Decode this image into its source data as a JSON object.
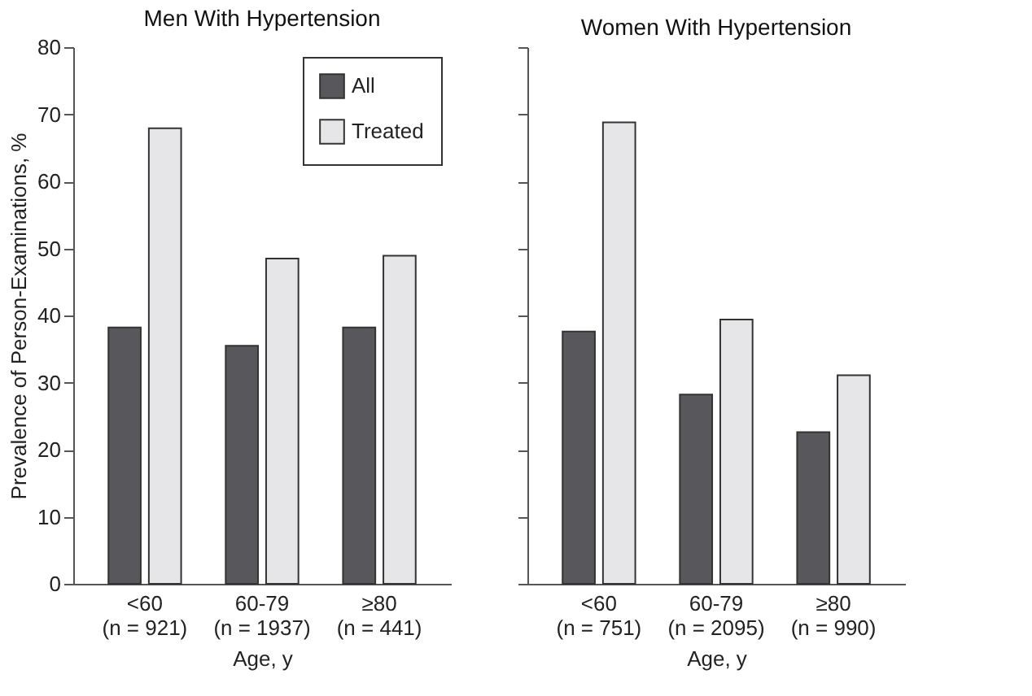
{
  "chart_data": [
    {
      "type": "bar",
      "title": "Men With Hypertension",
      "xlabel": "Age, y",
      "ylabel": "Prevalence of Person-Examinations, %",
      "categories": [
        "<60\n(n = 921)",
        "60-79\n(n = 1937)",
        "≥80\n(n = 441)"
      ],
      "series": [
        {
          "name": "All",
          "color": "#58585c",
          "values": [
            38.2,
            35.5,
            38.2
          ]
        },
        {
          "name": "Treated",
          "color": "#e6e6e8",
          "values": [
            67.9,
            48.5,
            48.9
          ]
        }
      ],
      "ylim": [
        0,
        80
      ],
      "yticks": [
        0,
        10,
        20,
        30,
        40,
        50,
        60,
        70,
        80
      ],
      "grid": false,
      "legend": "top right"
    },
    {
      "type": "bar",
      "title": "Women With Hypertension",
      "xlabel": "Age, y",
      "categories": [
        "<60\n(n = 751)",
        "60-79\n(n = 2095)",
        "≥80\n(n = 990)"
      ],
      "series": [
        {
          "color": "#58585c",
          "values": [
            37.6,
            28.2,
            22.6
          ]
        },
        {
          "color": "#e6e6e8",
          "values": [
            68.8,
            39.4,
            31.1
          ]
        }
      ],
      "ylim": [
        0,
        80
      ],
      "yticks": [
        0,
        10,
        20,
        30,
        40,
        50,
        60,
        70,
        80
      ],
      "grid": false,
      "tick_labels": "x",
      "legend": false
    }
  ]
}
